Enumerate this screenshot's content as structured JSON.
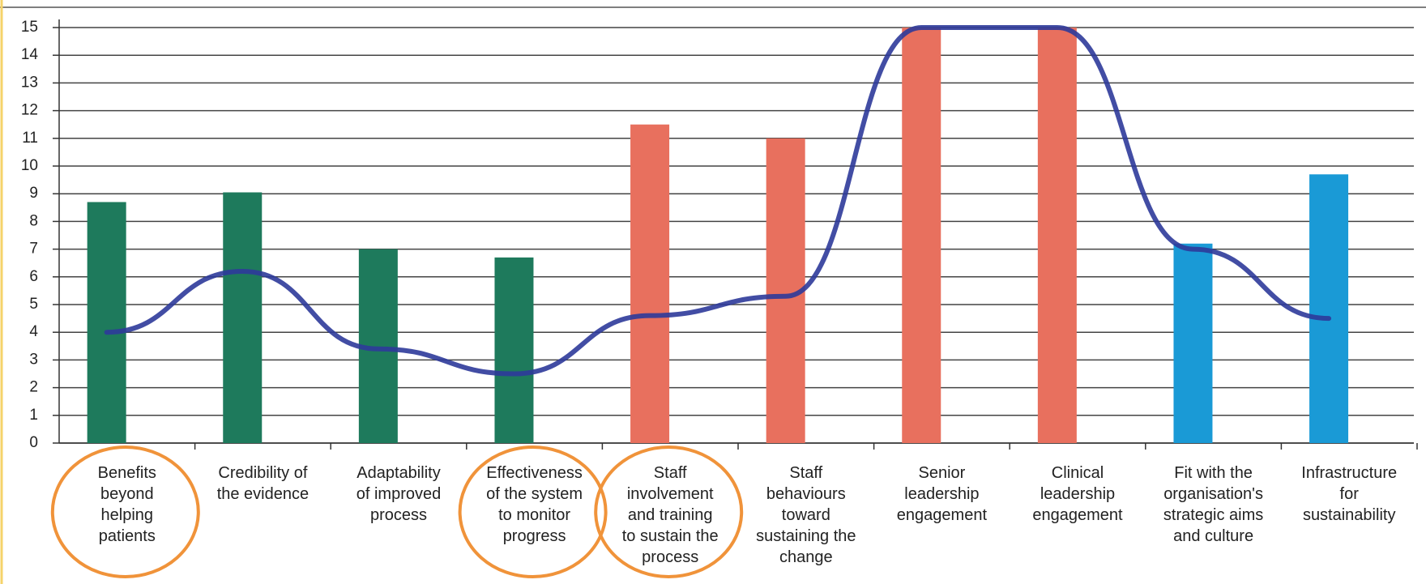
{
  "chart_data": {
    "type": "bar",
    "categories": [
      "Benefits\nbeyond\nhelping\npatients",
      "Credibility of\nthe evidence",
      "Adaptability\nof improved\nprocess",
      "Effectiveness\nof the system\nto monitor\nprogress",
      "Staff\ninvolvement\nand training\nto sustain the\nprocess",
      "Staff\nbehaviours\ntoward\nsustaining the\nchange",
      "Senior\nleadership\nengagement",
      "Clinical\nleadership\nengagement",
      "Fit with the\norganisation's\nstrategic aims\nand culture",
      "Infrastructure\nfor\nsustainability"
    ],
    "series": [
      {
        "type": "bar",
        "colors": [
          "#1e7a5c",
          "#1e7a5c",
          "#1e7a5c",
          "#1e7a5c",
          "#e8705e",
          "#e8705e",
          "#e8705e",
          "#e8705e",
          "#1a9ad6",
          "#1a9ad6"
        ],
        "values": [
          8.7,
          9.05,
          7,
          6.7,
          11.5,
          11,
          15,
          15,
          7.2,
          9.7
        ]
      },
      {
        "type": "line",
        "color": "#2e3a9a",
        "values": [
          4,
          6.2,
          3.4,
          2.5,
          4.6,
          5.3,
          15,
          15,
          7,
          4.5
        ]
      }
    ],
    "highlighted_categories": [
      0,
      3,
      4
    ],
    "highlight_color": "#f0933a",
    "ylim": [
      0,
      15
    ],
    "yticks": [
      0,
      1,
      2,
      3,
      4,
      5,
      6,
      7,
      8,
      9,
      10,
      11,
      12,
      13,
      14,
      15
    ],
    "grid": true
  }
}
